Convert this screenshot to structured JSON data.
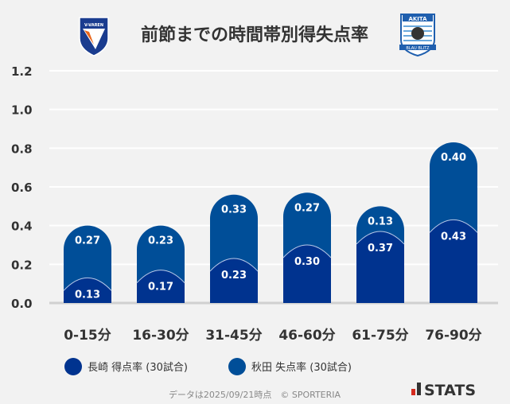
{
  "chart_data": {
    "type": "bar",
    "stacked": true,
    "title": "前節までの時間帯別得失点率",
    "categories": [
      "0-15分",
      "16-30分",
      "31-45分",
      "46-60分",
      "61-75分",
      "76-90分"
    ],
    "series": [
      {
        "name": "長崎 得点率 (30試合)",
        "values": [
          0.13,
          0.17,
          0.23,
          0.3,
          0.37,
          0.43
        ],
        "color": "#00338f"
      },
      {
        "name": "秋田 失点率 (30試合)",
        "values": [
          0.27,
          0.23,
          0.33,
          0.27,
          0.13,
          0.4
        ],
        "color": "#004e98"
      }
    ],
    "yticks": [
      "0.0",
      "0.2",
      "0.4",
      "0.6",
      "0.8",
      "1.0",
      "1.2"
    ],
    "ylim": [
      0,
      1.2
    ],
    "grid": true,
    "legend": "bottom"
  },
  "logos": {
    "left": "V-VAREN",
    "right": "AKITA BLAU BLITZ"
  },
  "footer": "データは2025/09/21時点　© SPORTERIA",
  "brand": "STATS"
}
